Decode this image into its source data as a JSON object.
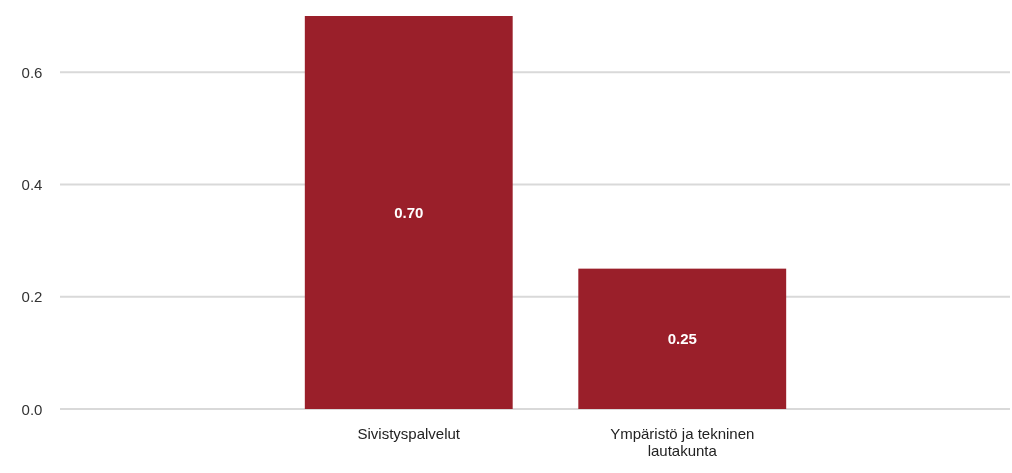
{
  "chart_data": {
    "type": "bar",
    "categories": [
      "Sivistyspalvelut",
      "Ympäristö ja tekninen lautakunta"
    ],
    "values": [
      0.7,
      0.25
    ],
    "color": "#9a1f2a",
    "ylim": [
      0,
      0.7
    ],
    "yticks": [
      {
        "value": 0,
        "label": "0.0"
      },
      {
        "value": 0.2,
        "label": "0.2"
      },
      {
        "value": 0.4,
        "label": "0.4"
      },
      {
        "value": 0.6,
        "label": "0.6"
      }
    ],
    "value_labels": [
      "0.70",
      "0.25"
    ],
    "grid": "y"
  }
}
